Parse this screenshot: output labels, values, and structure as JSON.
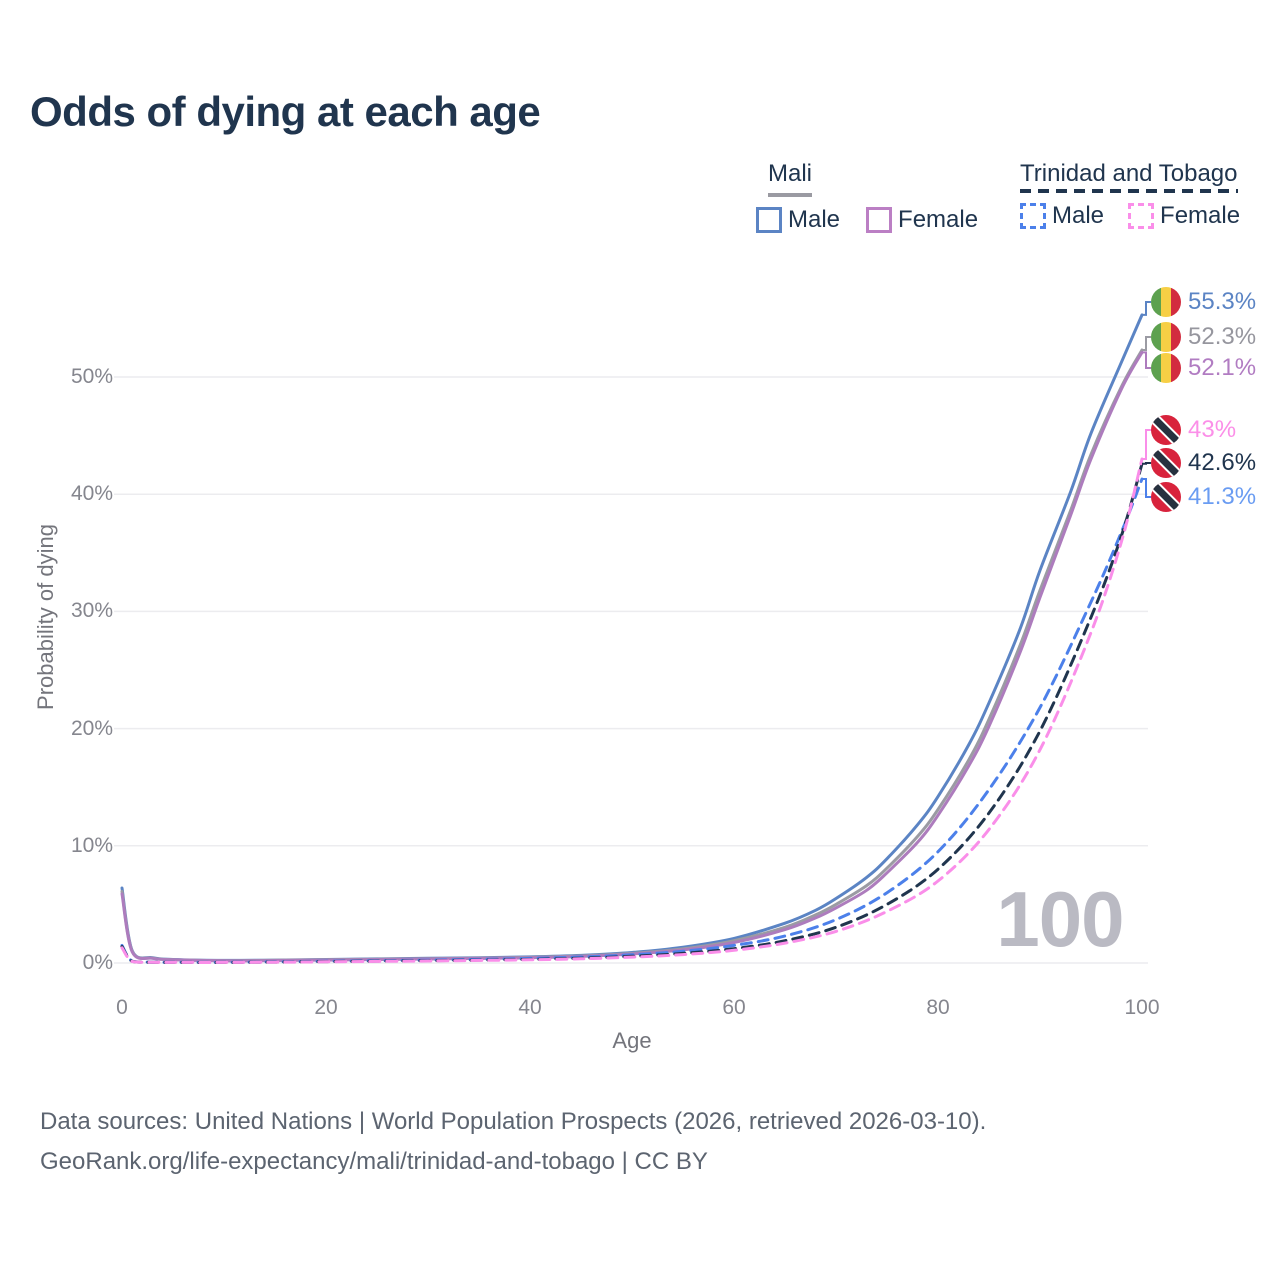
{
  "title": "Odds of dying at each age",
  "legend": {
    "mali": {
      "title": "Mali",
      "male_label": "Male",
      "female_label": "Female"
    },
    "trinidad_and_tobago": {
      "title": "Trinidad and Tobago",
      "male_label": "Male",
      "female_label": "Female"
    }
  },
  "axes": {
    "y_title": "Probability of dying",
    "x_title": "Age",
    "y_ticks": [
      "0%",
      "10%",
      "20%",
      "30%",
      "40%",
      "50%"
    ],
    "x_ticks": [
      "0",
      "20",
      "40",
      "60",
      "80",
      "100"
    ]
  },
  "watermark": "100",
  "footer": {
    "line1": "Data sources: United Nations | World Population Prospects (2026, retrieved 2026-03-10).",
    "line2": "GeoRank.org/life-expectancy/mali/trinidad-and-tobago | CC BY"
  },
  "colors": {
    "background": "#ffffff",
    "grid": "#ececef",
    "title_text": "#20354e",
    "tick_text": "#85868e",
    "watermark": "#babac3",
    "mali_underline": "#9a9aa2",
    "tt_underline": "#20354e"
  },
  "chart_data": {
    "type": "line",
    "title": "Odds of dying at each age",
    "xlabel": "Age",
    "ylabel": "Probability of dying",
    "xlim": [
      0,
      100
    ],
    "ylim_percent": [
      0,
      56
    ],
    "grid": "horizontal-only",
    "legend_position": "top-right",
    "y_unit": "percent probability of dying at each age",
    "series": [
      {
        "name": "Mali — Male",
        "country": "Mali",
        "sex": "male",
        "style": "solid",
        "color": "#5b84c4",
        "end_label": "55.3%",
        "end_value_percent": 55.3,
        "label_color": "#5b84c4",
        "flag_icon": "mali-flag-icon",
        "points": [
          [
            0,
            6.4
          ],
          [
            1,
            1.05
          ],
          [
            3,
            0.45
          ],
          [
            5,
            0.3
          ],
          [
            10,
            0.22
          ],
          [
            15,
            0.25
          ],
          [
            20,
            0.3
          ],
          [
            25,
            0.35
          ],
          [
            30,
            0.4
          ],
          [
            35,
            0.45
          ],
          [
            40,
            0.52
          ],
          [
            45,
            0.65
          ],
          [
            50,
            0.9
          ],
          [
            55,
            1.35
          ],
          [
            60,
            2.1
          ],
          [
            65,
            3.4
          ],
          [
            68,
            4.5
          ],
          [
            70,
            5.5
          ],
          [
            73,
            7.3
          ],
          [
            75,
            8.9
          ],
          [
            78,
            11.8
          ],
          [
            80,
            14.2
          ],
          [
            83,
            18.6
          ],
          [
            85,
            22.2
          ],
          [
            88,
            28.4
          ],
          [
            90,
            33.5
          ],
          [
            93,
            40.2
          ],
          [
            95,
            45.2
          ],
          [
            98,
            51.3
          ],
          [
            100,
            55.3
          ]
        ]
      },
      {
        "name": "Mali — Total",
        "country": "Mali",
        "sex": "total",
        "style": "solid",
        "color": "#9b9ba3",
        "end_label": "52.3%",
        "end_value_percent": 52.3,
        "label_color": "#96969e",
        "flag_icon": "mali-flag-icon",
        "points": [
          [
            0,
            6.1
          ],
          [
            1,
            1.0
          ],
          [
            3,
            0.42
          ],
          [
            5,
            0.28
          ],
          [
            10,
            0.2
          ],
          [
            15,
            0.23
          ],
          [
            20,
            0.27
          ],
          [
            25,
            0.32
          ],
          [
            30,
            0.37
          ],
          [
            35,
            0.42
          ],
          [
            40,
            0.48
          ],
          [
            45,
            0.6
          ],
          [
            50,
            0.82
          ],
          [
            55,
            1.2
          ],
          [
            60,
            1.9
          ],
          [
            65,
            3.05
          ],
          [
            68,
            4.1
          ],
          [
            70,
            5.0
          ],
          [
            73,
            6.6
          ],
          [
            75,
            8.1
          ],
          [
            78,
            10.8
          ],
          [
            80,
            13.1
          ],
          [
            83,
            17.3
          ],
          [
            85,
            20.8
          ],
          [
            88,
            27.0
          ],
          [
            90,
            31.8
          ],
          [
            93,
            38.6
          ],
          [
            95,
            43.4
          ],
          [
            98,
            49.2
          ],
          [
            100,
            52.3
          ]
        ]
      },
      {
        "name": "Mali — Female",
        "country": "Mali",
        "sex": "female",
        "style": "solid",
        "color": "#ad7cbd",
        "end_label": "52.1%",
        "end_value_percent": 52.1,
        "label_color": "#b17cc2",
        "flag_icon": "mali-flag-icon",
        "points": [
          [
            0,
            5.9
          ],
          [
            1,
            0.95
          ],
          [
            3,
            0.4
          ],
          [
            5,
            0.27
          ],
          [
            10,
            0.19
          ],
          [
            15,
            0.21
          ],
          [
            20,
            0.25
          ],
          [
            25,
            0.3
          ],
          [
            30,
            0.34
          ],
          [
            35,
            0.39
          ],
          [
            40,
            0.45
          ],
          [
            45,
            0.56
          ],
          [
            50,
            0.77
          ],
          [
            55,
            1.12
          ],
          [
            60,
            1.75
          ],
          [
            65,
            2.85
          ],
          [
            68,
            3.85
          ],
          [
            70,
            4.7
          ],
          [
            73,
            6.2
          ],
          [
            75,
            7.7
          ],
          [
            78,
            10.3
          ],
          [
            80,
            12.6
          ],
          [
            83,
            16.8
          ],
          [
            85,
            20.2
          ],
          [
            88,
            26.4
          ],
          [
            90,
            31.2
          ],
          [
            93,
            38.2
          ],
          [
            95,
            43.0
          ],
          [
            98,
            49.0
          ],
          [
            100,
            52.1
          ]
        ]
      },
      {
        "name": "Trinidad and Tobago — Female",
        "country": "Trinidad and Tobago",
        "sex": "female",
        "style": "dashed",
        "color": "#fa8ee9",
        "end_label": "43%",
        "end_value_percent": 43.0,
        "label_color": "#fb8fe8",
        "flag_icon": "trinidad-and-tobago-flag-icon",
        "points": [
          [
            0,
            1.3
          ],
          [
            1,
            0.13
          ],
          [
            3,
            0.06
          ],
          [
            5,
            0.05
          ],
          [
            10,
            0.05
          ],
          [
            15,
            0.07
          ],
          [
            20,
            0.1
          ],
          [
            25,
            0.14
          ],
          [
            30,
            0.17
          ],
          [
            35,
            0.22
          ],
          [
            40,
            0.27
          ],
          [
            45,
            0.36
          ],
          [
            50,
            0.5
          ],
          [
            55,
            0.72
          ],
          [
            60,
            1.08
          ],
          [
            65,
            1.7
          ],
          [
            70,
            2.7
          ],
          [
            75,
            4.4
          ],
          [
            80,
            7.0
          ],
          [
            85,
            11.4
          ],
          [
            90,
            18.2
          ],
          [
            95,
            28.2
          ],
          [
            98,
            36.0
          ],
          [
            100,
            43.0
          ]
        ]
      },
      {
        "name": "Trinidad and Tobago — Total",
        "country": "Trinidad and Tobago",
        "sex": "total",
        "style": "dashed",
        "color": "#20354e",
        "end_label": "42.6%",
        "end_value_percent": 42.6,
        "label_color": "#20354e",
        "flag_icon": "trinidad-and-tobago-flag-icon",
        "points": [
          [
            0,
            1.4
          ],
          [
            1,
            0.14
          ],
          [
            3,
            0.06
          ],
          [
            5,
            0.05
          ],
          [
            10,
            0.05
          ],
          [
            15,
            0.08
          ],
          [
            20,
            0.12
          ],
          [
            25,
            0.16
          ],
          [
            30,
            0.2
          ],
          [
            35,
            0.25
          ],
          [
            40,
            0.31
          ],
          [
            45,
            0.41
          ],
          [
            50,
            0.57
          ],
          [
            55,
            0.82
          ],
          [
            60,
            1.22
          ],
          [
            65,
            1.9
          ],
          [
            70,
            3.05
          ],
          [
            75,
            5.0
          ],
          [
            80,
            8.0
          ],
          [
            85,
            12.8
          ],
          [
            90,
            19.8
          ],
          [
            95,
            29.5
          ],
          [
            98,
            36.5
          ],
          [
            100,
            42.6
          ]
        ]
      },
      {
        "name": "Trinidad and Tobago — Male",
        "country": "Trinidad and Tobago",
        "sex": "male",
        "style": "dashed",
        "color": "#4c80ea",
        "end_label": "41.3%",
        "end_value_percent": 41.3,
        "label_color": "#6a9cf2",
        "flag_icon": "trinidad-and-tobago-flag-icon",
        "points": [
          [
            0,
            1.5
          ],
          [
            1,
            0.15
          ],
          [
            3,
            0.07
          ],
          [
            5,
            0.06
          ],
          [
            10,
            0.06
          ],
          [
            15,
            0.1
          ],
          [
            20,
            0.15
          ],
          [
            25,
            0.2
          ],
          [
            30,
            0.25
          ],
          [
            35,
            0.31
          ],
          [
            40,
            0.39
          ],
          [
            45,
            0.51
          ],
          [
            50,
            0.7
          ],
          [
            55,
            1.0
          ],
          [
            60,
            1.5
          ],
          [
            65,
            2.3
          ],
          [
            70,
            3.7
          ],
          [
            75,
            6.0
          ],
          [
            80,
            9.5
          ],
          [
            85,
            14.8
          ],
          [
            90,
            21.8
          ],
          [
            95,
            30.8
          ],
          [
            98,
            36.8
          ],
          [
            100,
            41.3
          ]
        ]
      }
    ]
  }
}
